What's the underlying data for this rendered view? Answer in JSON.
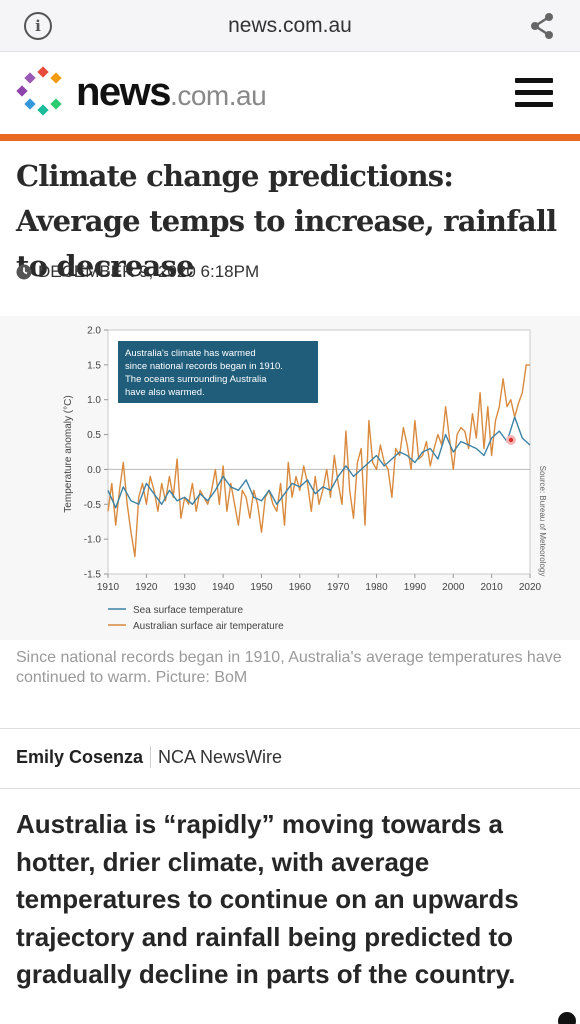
{
  "browser": {
    "url": "news.com.au",
    "info_icon": "info-icon",
    "share_icon": "share-icon"
  },
  "site": {
    "logo_word": "news",
    "logo_domain": ".com.au",
    "menu_icon": "hamburger-menu-icon",
    "accent_color": "#e8691f"
  },
  "article": {
    "headline": "Climate change predictions: Average temps to increase, rainfall to decrease",
    "date": "DECEMBER 9, 2020 6:18PM",
    "caption": "Since national records began in 1910, Australia's average temperatures have continued to warm. Picture: BoM",
    "author": "Emily Cosenza",
    "source": "NCA NewsWire",
    "lead": "Australia is “rapidly” moving towards a hotter, drier climate, with average temperatures to continue on an upwards trajectory and rainfall being predicted to gradually decline in parts of the country."
  },
  "chart_data": {
    "type": "line",
    "ylabel": "Temperature anomaly (°C)",
    "xlabel": "",
    "source_note": "Source: Bureau of Meteorology",
    "annotation": [
      "Australia's climate has warmed",
      "since national records began in 1910.",
      "The oceans surrounding Australia",
      "have also warmed."
    ],
    "xlim": [
      1910,
      2020
    ],
    "ylim": [
      -1.5,
      2.0
    ],
    "x_ticks": [
      "1910",
      "1920",
      "1930",
      "1940",
      "1950",
      "1960",
      "1970",
      "1980",
      "1990",
      "2000",
      "2010",
      "2020"
    ],
    "y_ticks": [
      "2.0",
      "1.5",
      "1.0",
      "0.5",
      "0.0",
      "-0.5",
      "-1.0",
      "-1.5"
    ],
    "legend_position": "bottom-left",
    "grid": false,
    "series": [
      {
        "name": "Sea surface temperature",
        "color": "#3c82a5",
        "x": [
          1910,
          1912,
          1914,
          1916,
          1918,
          1920,
          1922,
          1924,
          1926,
          1928,
          1930,
          1932,
          1934,
          1936,
          1938,
          1940,
          1942,
          1944,
          1946,
          1948,
          1950,
          1952,
          1954,
          1956,
          1958,
          1960,
          1962,
          1964,
          1966,
          1968,
          1970,
          1972,
          1974,
          1976,
          1978,
          1980,
          1982,
          1984,
          1986,
          1988,
          1990,
          1992,
          1994,
          1996,
          1998,
          2000,
          2002,
          2004,
          2006,
          2008,
          2010,
          2012,
          2014,
          2016,
          2018,
          2020
        ],
        "y": [
          -0.3,
          -0.55,
          -0.25,
          -0.45,
          -0.5,
          -0.2,
          -0.35,
          -0.5,
          -0.3,
          -0.45,
          -0.4,
          -0.5,
          -0.35,
          -0.45,
          -0.3,
          -0.1,
          -0.25,
          -0.3,
          -0.15,
          -0.4,
          -0.45,
          -0.3,
          -0.5,
          -0.35,
          -0.2,
          -0.25,
          -0.15,
          -0.35,
          -0.25,
          -0.3,
          -0.1,
          0.05,
          -0.1,
          0.0,
          0.1,
          0.2,
          0.05,
          0.15,
          0.25,
          0.2,
          0.1,
          0.25,
          0.3,
          0.15,
          0.5,
          0.25,
          0.4,
          0.35,
          0.3,
          0.2,
          0.45,
          0.55,
          0.4,
          0.75,
          0.45,
          0.35
        ]
      },
      {
        "name": "Australian surface air temperature",
        "color": "#d98a3e",
        "x": [
          1910,
          1911,
          1912,
          1913,
          1914,
          1915,
          1916,
          1917,
          1918,
          1919,
          1920,
          1921,
          1922,
          1923,
          1924,
          1925,
          1926,
          1927,
          1928,
          1929,
          1930,
          1931,
          1932,
          1933,
          1934,
          1935,
          1936,
          1937,
          1938,
          1939,
          1940,
          1941,
          1942,
          1943,
          1944,
          1945,
          1946,
          1947,
          1948,
          1949,
          1950,
          1951,
          1952,
          1953,
          1954,
          1955,
          1956,
          1957,
          1958,
          1959,
          1960,
          1961,
          1962,
          1963,
          1964,
          1965,
          1966,
          1967,
          1968,
          1969,
          1970,
          1971,
          1972,
          1973,
          1974,
          1975,
          1976,
          1977,
          1978,
          1979,
          1980,
          1981,
          1982,
          1983,
          1984,
          1985,
          1986,
          1987,
          1988,
          1989,
          1990,
          1991,
          1992,
          1993,
          1994,
          1995,
          1996,
          1997,
          1998,
          1999,
          2000,
          2001,
          2002,
          2003,
          2004,
          2005,
          2006,
          2007,
          2008,
          2009,
          2010,
          2011,
          2012,
          2013,
          2014,
          2015,
          2016,
          2017,
          2018,
          2019,
          2020
        ],
        "y": [
          -0.6,
          -0.2,
          -0.8,
          -0.3,
          0.1,
          -0.5,
          -0.9,
          -1.25,
          -0.4,
          -0.2,
          -0.5,
          -0.1,
          -0.3,
          -0.6,
          -0.2,
          -0.45,
          -0.1,
          -0.4,
          0.15,
          -0.7,
          -0.4,
          -0.5,
          -0.2,
          -0.6,
          -0.3,
          -0.4,
          -0.5,
          -0.3,
          0.0,
          -0.5,
          0.05,
          -0.6,
          -0.2,
          -0.5,
          -0.8,
          -0.3,
          -0.4,
          -0.7,
          -0.3,
          -0.5,
          -0.9,
          -0.4,
          -0.3,
          -0.5,
          -0.6,
          -0.2,
          -0.8,
          0.1,
          -0.4,
          -0.1,
          -0.3,
          0.05,
          -0.2,
          -0.6,
          -0.1,
          -0.5,
          -0.3,
          0.0,
          -0.4,
          0.2,
          -0.2,
          -0.5,
          0.55,
          -0.3,
          -0.7,
          0.1,
          0.3,
          -0.8,
          0.7,
          0.1,
          0.0,
          0.35,
          0.1,
          0.0,
          -0.4,
          0.3,
          0.2,
          0.6,
          0.35,
          0.0,
          0.7,
          0.15,
          0.2,
          0.4,
          0.05,
          0.3,
          0.5,
          0.35,
          0.9,
          0.45,
          0.0,
          0.5,
          0.6,
          0.55,
          0.3,
          0.8,
          0.45,
          1.1,
          0.3,
          0.9,
          0.2,
          0.7,
          0.9,
          1.3,
          0.9,
          1.0,
          0.75,
          0.95,
          1.1,
          1.5,
          1.5
        ]
      }
    ]
  }
}
